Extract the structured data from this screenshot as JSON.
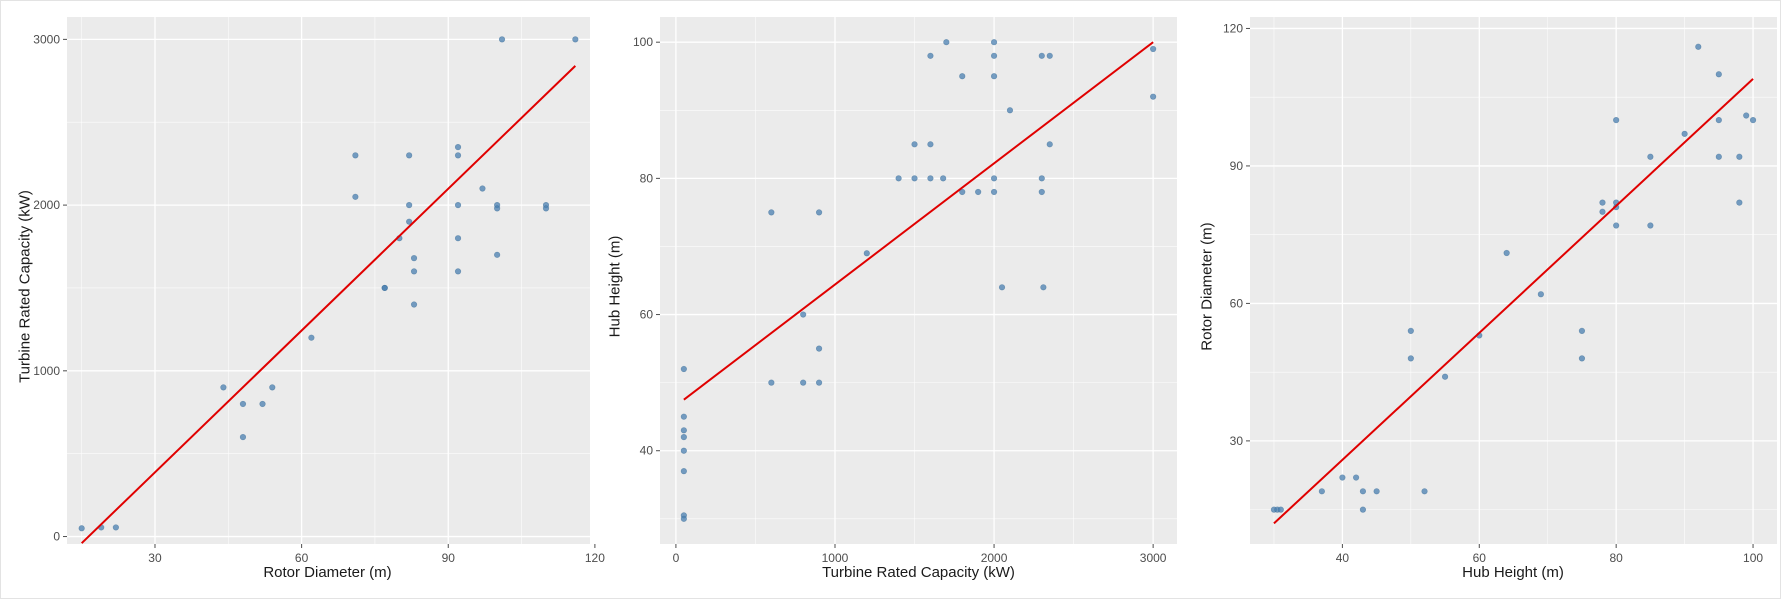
{
  "chart_data": [
    {
      "type": "scatter",
      "xlabel": "Rotor Diameter (m)",
      "ylabel": "Turbine Rated Capacity (kW)",
      "xlim": [
        12,
        119
      ],
      "ylim": [
        -45,
        3135
      ],
      "xticks": [
        30,
        60,
        90,
        120
      ],
      "yticks": [
        0,
        1000,
        2000,
        3000
      ],
      "xtick_labels": [
        "30",
        "60",
        "90",
        "120"
      ],
      "ytick_labels": [
        "0",
        "1000",
        "2000",
        "3000"
      ],
      "grid": true,
      "points": [
        {
          "x": 15,
          "y": 50
        },
        {
          "x": 19,
          "y": 55
        },
        {
          "x": 22,
          "y": 55
        },
        {
          "x": 44,
          "y": 900
        },
        {
          "x": 48,
          "y": 800
        },
        {
          "x": 48,
          "y": 600
        },
        {
          "x": 52,
          "y": 800
        },
        {
          "x": 54,
          "y": 900
        },
        {
          "x": 62,
          "y": 1200
        },
        {
          "x": 71,
          "y": 2300
        },
        {
          "x": 71,
          "y": 2050
        },
        {
          "x": 77,
          "y": 1500
        },
        {
          "x": 77,
          "y": 1500
        },
        {
          "x": 80,
          "y": 1800
        },
        {
          "x": 82,
          "y": 2300
        },
        {
          "x": 82,
          "y": 2000
        },
        {
          "x": 82,
          "y": 1900
        },
        {
          "x": 83,
          "y": 1680
        },
        {
          "x": 83,
          "y": 1600
        },
        {
          "x": 83,
          "y": 1400
        },
        {
          "x": 92,
          "y": 2350
        },
        {
          "x": 92,
          "y": 2300
        },
        {
          "x": 92,
          "y": 2000
        },
        {
          "x": 92,
          "y": 1800
        },
        {
          "x": 92,
          "y": 1600
        },
        {
          "x": 97,
          "y": 2100
        },
        {
          "x": 100,
          "y": 2000
        },
        {
          "x": 100,
          "y": 1980
        },
        {
          "x": 100,
          "y": 1700
        },
        {
          "x": 101,
          "y": 3000
        },
        {
          "x": 110,
          "y": 2000
        },
        {
          "x": 110,
          "y": 1980
        },
        {
          "x": 116,
          "y": 3000
        }
      ],
      "fit_line": [
        {
          "x": 15,
          "y": -40
        },
        {
          "x": 116,
          "y": 2840
        }
      ],
      "colors": {
        "point": "#4a7fb0",
        "fit": "#e00000",
        "panel_bg": "#ebebeb",
        "grid": "#ffffff"
      }
    },
    {
      "type": "scatter",
      "xlabel": "Turbine Rated Capacity (kW)",
      "ylabel": "Hub Height (m)",
      "xlim": [
        -100,
        3150
      ],
      "ylim": [
        26.3,
        103.7
      ],
      "xticks": [
        0,
        1000,
        2000,
        3000
      ],
      "yticks": [
        40,
        60,
        80,
        100
      ],
      "xtick_labels": [
        "0",
        "1000",
        "2000",
        "3000"
      ],
      "ytick_labels": [
        "40",
        "60",
        "80",
        "100"
      ],
      "grid": true,
      "points": [
        {
          "x": 50,
          "y": 52
        },
        {
          "x": 50,
          "y": 45
        },
        {
          "x": 50,
          "y": 43
        },
        {
          "x": 50,
          "y": 42
        },
        {
          "x": 50,
          "y": 40
        },
        {
          "x": 50,
          "y": 37
        },
        {
          "x": 50,
          "y": 30.5
        },
        {
          "x": 50,
          "y": 30
        },
        {
          "x": 600,
          "y": 75
        },
        {
          "x": 600,
          "y": 50
        },
        {
          "x": 800,
          "y": 60
        },
        {
          "x": 800,
          "y": 50
        },
        {
          "x": 900,
          "y": 75
        },
        {
          "x": 900,
          "y": 55
        },
        {
          "x": 900,
          "y": 50
        },
        {
          "x": 1200,
          "y": 69
        },
        {
          "x": 1400,
          "y": 80
        },
        {
          "x": 1500,
          "y": 85
        },
        {
          "x": 1500,
          "y": 80
        },
        {
          "x": 1600,
          "y": 98
        },
        {
          "x": 1600,
          "y": 85
        },
        {
          "x": 1600,
          "y": 80
        },
        {
          "x": 1680,
          "y": 80
        },
        {
          "x": 1700,
          "y": 100
        },
        {
          "x": 1800,
          "y": 95
        },
        {
          "x": 1800,
          "y": 78
        },
        {
          "x": 1900,
          "y": 78
        },
        {
          "x": 2000,
          "y": 100
        },
        {
          "x": 2000,
          "y": 98
        },
        {
          "x": 2000,
          "y": 95
        },
        {
          "x": 2000,
          "y": 80
        },
        {
          "x": 2000,
          "y": 78
        },
        {
          "x": 2050,
          "y": 64
        },
        {
          "x": 2100,
          "y": 90
        },
        {
          "x": 2300,
          "y": 98
        },
        {
          "x": 2300,
          "y": 80
        },
        {
          "x": 2300,
          "y": 78
        },
        {
          "x": 2310,
          "y": 64
        },
        {
          "x": 2350,
          "y": 98
        },
        {
          "x": 2350,
          "y": 85
        },
        {
          "x": 3000,
          "y": 99
        },
        {
          "x": 3000,
          "y": 92
        }
      ],
      "fit_line": [
        {
          "x": 50,
          "y": 47.5
        },
        {
          "x": 3000,
          "y": 100
        }
      ],
      "colors": {
        "point": "#4a7fb0",
        "fit": "#e00000",
        "panel_bg": "#ebebeb",
        "grid": "#ffffff"
      }
    },
    {
      "type": "scatter",
      "xlabel": "Hub Height (m)",
      "ylabel": "Rotor Diameter (m)",
      "xlim": [
        26.5,
        103.5
      ],
      "ylim": [
        7.5,
        122.5
      ],
      "xticks": [
        40,
        60,
        80,
        100
      ],
      "yticks": [
        30,
        60,
        90,
        120
      ],
      "xtick_labels": [
        "40",
        "60",
        "80",
        "100"
      ],
      "ytick_labels": [
        "30",
        "60",
        "90",
        "120"
      ],
      "grid": true,
      "points": [
        {
          "x": 30,
          "y": 15
        },
        {
          "x": 30.5,
          "y": 15
        },
        {
          "x": 31,
          "y": 15
        },
        {
          "x": 37,
          "y": 19
        },
        {
          "x": 40,
          "y": 22
        },
        {
          "x": 42,
          "y": 22
        },
        {
          "x": 43,
          "y": 19
        },
        {
          "x": 43,
          "y": 15
        },
        {
          "x": 45,
          "y": 19
        },
        {
          "x": 50,
          "y": 54
        },
        {
          "x": 50,
          "y": 48
        },
        {
          "x": 52,
          "y": 19
        },
        {
          "x": 55,
          "y": 44
        },
        {
          "x": 60,
          "y": 53
        },
        {
          "x": 64,
          "y": 71
        },
        {
          "x": 69,
          "y": 62
        },
        {
          "x": 75,
          "y": 54
        },
        {
          "x": 75,
          "y": 48
        },
        {
          "x": 78,
          "y": 82
        },
        {
          "x": 78,
          "y": 80
        },
        {
          "x": 80,
          "y": 100
        },
        {
          "x": 80,
          "y": 82
        },
        {
          "x": 80,
          "y": 81
        },
        {
          "x": 80,
          "y": 77
        },
        {
          "x": 85,
          "y": 92
        },
        {
          "x": 85,
          "y": 77
        },
        {
          "x": 90,
          "y": 97
        },
        {
          "x": 92,
          "y": 116
        },
        {
          "x": 95,
          "y": 110
        },
        {
          "x": 95,
          "y": 100
        },
        {
          "x": 95,
          "y": 92
        },
        {
          "x": 98,
          "y": 92
        },
        {
          "x": 98,
          "y": 82
        },
        {
          "x": 99,
          "y": 101
        },
        {
          "x": 100,
          "y": 100
        }
      ],
      "fit_line": [
        {
          "x": 30,
          "y": 12
        },
        {
          "x": 100,
          "y": 109
        }
      ],
      "colors": {
        "point": "#4a7fb0",
        "fit": "#e00000",
        "panel_bg": "#ebebeb",
        "grid": "#ffffff"
      }
    }
  ]
}
